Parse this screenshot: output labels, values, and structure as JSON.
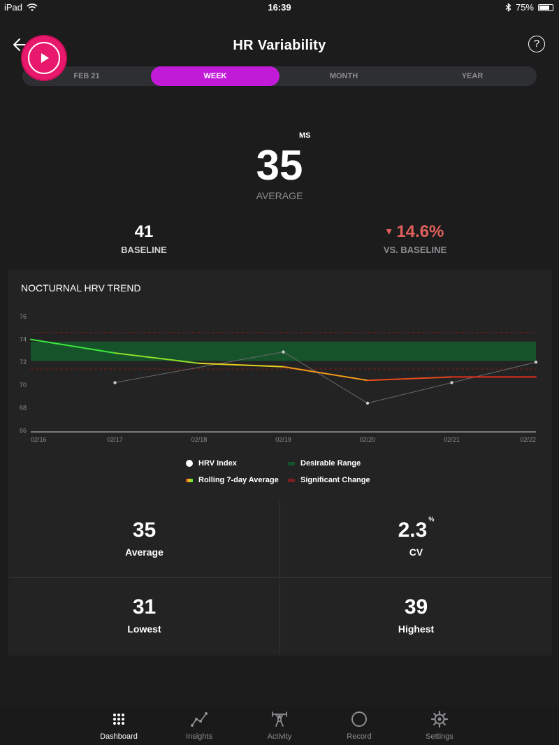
{
  "status": {
    "device": "iPad",
    "time": "16:39",
    "battery": "75%",
    "battery_level": 0.75
  },
  "header": {
    "title": "HR Variability",
    "help": "?"
  },
  "segments": [
    "FEB 21",
    "WEEK",
    "MONTH",
    "YEAR"
  ],
  "active_segment": "WEEK",
  "hero": {
    "value": "35",
    "unit": "MS",
    "label": "AVERAGE"
  },
  "baseline": {
    "value": "41",
    "label": "BASELINE"
  },
  "delta": {
    "arrow": "▾",
    "value": "14.6%",
    "label": "VS. BASELINE"
  },
  "card": {
    "title": "NOCTURNAL HRV TREND"
  },
  "chart_data": {
    "type": "line",
    "title": "NOCTURNAL HRV TREND",
    "x": [
      "02/16",
      "02/17",
      "02/18",
      "02/19",
      "02/20",
      "02/21",
      "02/22"
    ],
    "y_ticks": [
      76,
      74,
      72,
      70,
      68,
      66
    ],
    "ylim": [
      66,
      76
    ],
    "series": [
      {
        "name": "HRV Index",
        "values": [
          null,
          70.2,
          null,
          72.9,
          68.4,
          70.2,
          72.0
        ],
        "color": "#bbbbbb"
      },
      {
        "name": "Rolling 7-day Average",
        "values": [
          74.0,
          72.8,
          71.9,
          71.6,
          70.4,
          70.7,
          70.7
        ],
        "colors": [
          "#3ce63c",
          "#e6d21c",
          "#f39a1c",
          "#e0301c"
        ]
      }
    ],
    "desirable_range": [
      72.1,
      73.8
    ],
    "significant_change_lines": [
      74.6,
      71.4
    ],
    "legend": [
      "HRV Index",
      "Desirable Range",
      "Rolling 7-day Average",
      "Significant Change"
    ],
    "colors": {
      "desirable": "#16532a",
      "significant": "#7a1e1e"
    },
    "grid": false
  },
  "legend": {
    "hrv_index": "HRV Index",
    "desirable_range": "Desirable Range",
    "rolling_avg": "Rolling 7-day Average",
    "significant_change": "Significant Change"
  },
  "kpis": {
    "average": {
      "value": "35",
      "label": "Average"
    },
    "cv": {
      "value": "2.3",
      "sup": "%",
      "label": "CV"
    },
    "lowest": {
      "value": "31",
      "label": "Lowest"
    },
    "highest": {
      "value": "39",
      "label": "Highest"
    }
  },
  "tabs": {
    "dashboard": "Dashboard",
    "insights": "Insights",
    "activity": "Activity",
    "record": "Record",
    "settings": "Settings",
    "active": "Dashboard"
  },
  "accent": {
    "segment": "#c21bd8",
    "record": "#e8196c",
    "delta": "#e0605c"
  }
}
